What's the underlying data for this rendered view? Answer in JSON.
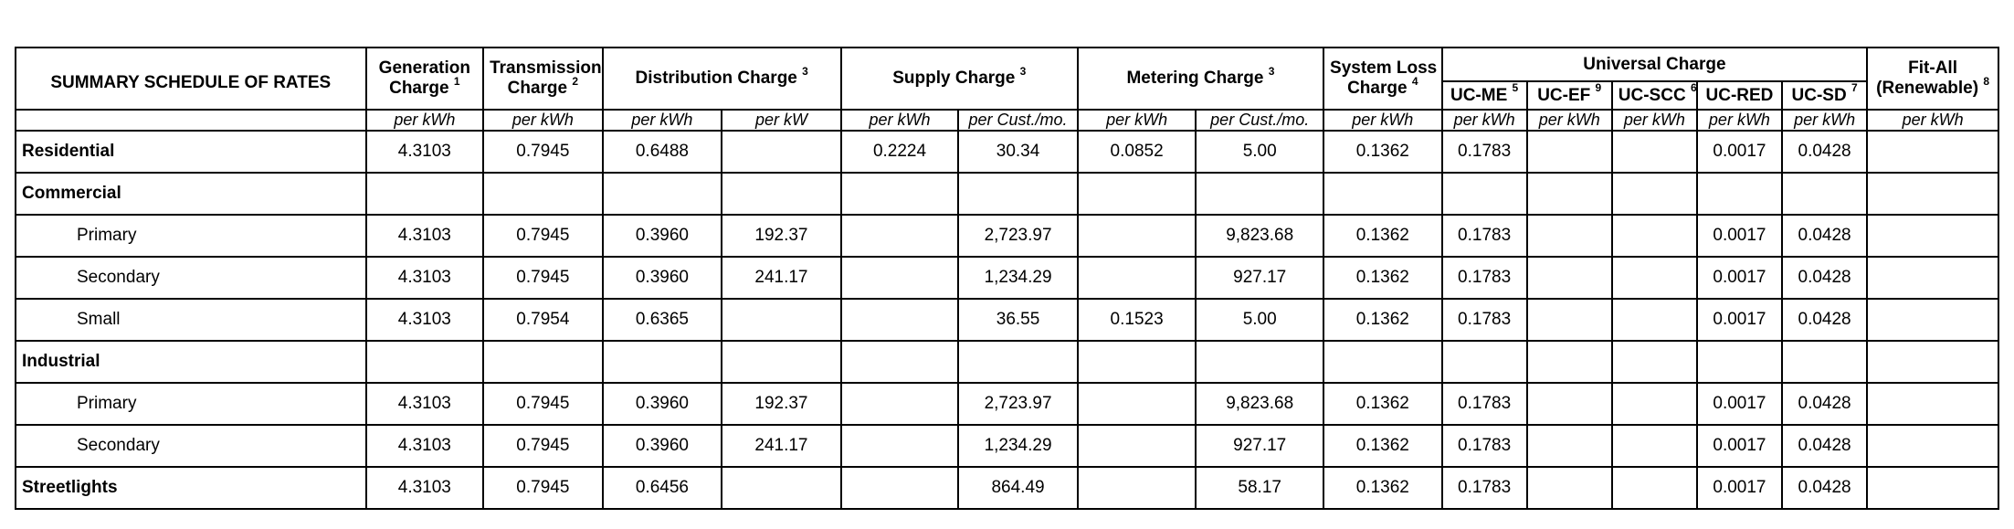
{
  "table": {
    "corner_title": "SUMMARY SCHEDULE OF RATES",
    "headers": {
      "generation": {
        "line1": "Generation",
        "line2": "Charge",
        "note": "1"
      },
      "transmission": {
        "line1": "Transmission",
        "line2": "Charge",
        "note": "2"
      },
      "distribution": {
        "label": "Distribution Charge",
        "note": "3"
      },
      "supply": {
        "label": "Supply Charge",
        "note": "3"
      },
      "metering": {
        "label": "Metering Charge",
        "note": "3"
      },
      "system_loss": {
        "line1": "System Loss",
        "line2": "Charge",
        "note": "4"
      },
      "universal": {
        "label": "Universal Charge"
      },
      "uc_me": {
        "label": "UC-ME",
        "note": "5"
      },
      "uc_ef": {
        "label": "UC-EF",
        "note": "9"
      },
      "uc_scc": {
        "label": "UC-SCC",
        "note": "6"
      },
      "uc_red": {
        "label": "UC-RED",
        "note": ""
      },
      "uc_sd": {
        "label": "UC-SD",
        "note": "7"
      },
      "fit_all": {
        "line1": "Fit-All",
        "line2": "(Renewable)",
        "note": "8"
      }
    },
    "units": [
      "per kWh",
      "per kWh",
      "per kWh",
      "per kW",
      "per kWh",
      "per Cust./mo.",
      "per kWh",
      "per Cust./mo.",
      "per kWh",
      "per kWh",
      "per kWh",
      "per kWh",
      "per kWh",
      "per kWh",
      "per kWh"
    ],
    "rows": [
      {
        "label": "Residential",
        "style": "group",
        "cells": [
          "4.3103",
          "0.7945",
          "0.6488",
          "",
          "0.2224",
          "30.34",
          "0.0852",
          "5.00",
          "0.1362",
          "0.1783",
          "",
          "",
          "0.0017",
          "0.0428",
          ""
        ]
      },
      {
        "label": "Commercial",
        "style": "group",
        "cells": [
          "",
          "",
          "",
          "",
          "",
          "",
          "",
          "",
          "",
          "",
          "",
          "",
          "",
          "",
          ""
        ]
      },
      {
        "label": "Primary",
        "style": "indent",
        "cells": [
          "4.3103",
          "0.7945",
          "0.3960",
          "192.37",
          "",
          "2,723.97",
          "",
          "9,823.68",
          "0.1362",
          "0.1783",
          "",
          "",
          "0.0017",
          "0.0428",
          ""
        ]
      },
      {
        "label": "Secondary",
        "style": "indent",
        "cells": [
          "4.3103",
          "0.7945",
          "0.3960",
          "241.17",
          "",
          "1,234.29",
          "",
          "927.17",
          "0.1362",
          "0.1783",
          "",
          "",
          "0.0017",
          "0.0428",
          ""
        ]
      },
      {
        "label": "Small",
        "style": "indent",
        "cells": [
          "4.3103",
          "0.7954",
          "0.6365",
          "",
          "",
          "36.55",
          "0.1523",
          "5.00",
          "0.1362",
          "0.1783",
          "",
          "",
          "0.0017",
          "0.0428",
          ""
        ]
      },
      {
        "label": "Industrial",
        "style": "group",
        "cells": [
          "",
          "",
          "",
          "",
          "",
          "",
          "",
          "",
          "",
          "",
          "",
          "",
          "",
          "",
          ""
        ]
      },
      {
        "label": "Primary",
        "style": "indent",
        "cells": [
          "4.3103",
          "0.7945",
          "0.3960",
          "192.37",
          "",
          "2,723.97",
          "",
          "9,823.68",
          "0.1362",
          "0.1783",
          "",
          "",
          "0.0017",
          "0.0428",
          ""
        ]
      },
      {
        "label": "Secondary",
        "style": "indent",
        "cells": [
          "4.3103",
          "0.7945",
          "0.3960",
          "241.17",
          "",
          "1,234.29",
          "",
          "927.17",
          "0.1362",
          "0.1783",
          "",
          "",
          "0.0017",
          "0.0428",
          ""
        ]
      },
      {
        "label": "Streetlights",
        "style": "group",
        "cells": [
          "4.3103",
          "0.7945",
          "0.6456",
          "",
          "",
          "864.49",
          "",
          "58.17",
          "0.1362",
          "0.1783",
          "",
          "",
          "0.0017",
          "0.0428",
          ""
        ]
      }
    ]
  }
}
